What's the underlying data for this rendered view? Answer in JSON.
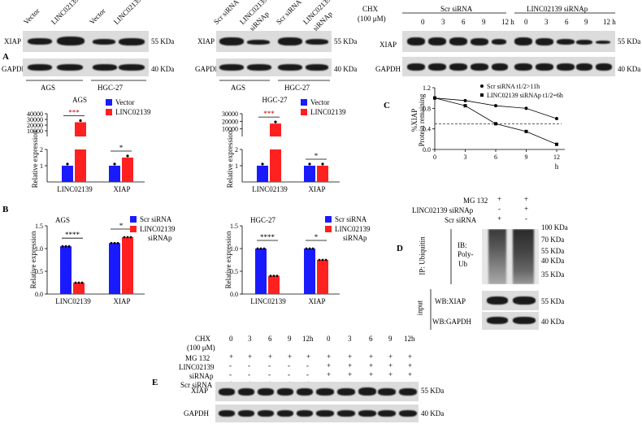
{
  "panel_letters": {
    "A": "A",
    "B": "B",
    "C": "C",
    "D": "D",
    "E": "E"
  },
  "units": {
    "kda55": "55 KDa",
    "kda40": "40 KDa",
    "kda100": "100 KDa",
    "kda70": "70 KDa",
    "kda35": "35 KDa"
  },
  "proteins": {
    "xiap": "XIAP",
    "gapdh": "GAPDH"
  },
  "cell_lines": {
    "ags": "AGS",
    "hgc": "HGC-27"
  },
  "blotA1": {
    "lanes": [
      "Vector",
      "LINC02139",
      "Vector",
      "LINC02139"
    ]
  },
  "blotA2": {
    "lanes": [
      "Scr siRNA",
      "LINC02139 siRNAp",
      "Scr siRNA",
      "LINC02139 siRNAp"
    ]
  },
  "blotC": {
    "cond_label": "CHX (100 μM)",
    "group1": "Scr siRNA",
    "group2": "LINC02139 siRNAp",
    "times": [
      "0",
      "3",
      "6",
      "9",
      "12 h",
      "0",
      "3",
      "6",
      "9",
      "12 h"
    ]
  },
  "plot_c": {
    "ylabel": "Protein remaining",
    "ylabel2": "%XIAP",
    "xlabel": "h",
    "legend": [
      "Scr siRNA t1/2>11h",
      "LINC02139 siRNAp t1/2=6h"
    ]
  },
  "blotD": {
    "rows": [
      "MG 132",
      "LINC02139 siRNAp",
      "Scr siRNA"
    ],
    "signs": [
      [
        "+",
        "+"
      ],
      [
        "-",
        "+"
      ],
      [
        "+",
        "-"
      ]
    ],
    "ip": "IP: Ubiquitin",
    "ib": "IB:",
    "ib2": "Poly-",
    "ib3": "Ub",
    "input": "input",
    "wb1": "WB:XIAP",
    "wb2": "WB:GAPDH"
  },
  "blotE": {
    "row_chx": "CHX",
    "row_chx2": "(100 μM)",
    "row_mg": "MG 132",
    "row_linc": "LINC02139",
    "row_linc2": "siRNAp",
    "row_scr": "Scr siRNA",
    "times": [
      "0",
      "3",
      "6",
      "9",
      "12h",
      "0",
      "3",
      "6",
      "9",
      "12h"
    ],
    "mg_signs": [
      "+",
      "+",
      "+",
      "+",
      "+",
      "+",
      "+",
      "+",
      "+",
      "+"
    ],
    "linc_signs": [
      "-",
      "-",
      "-",
      "-",
      "-",
      "+",
      "+",
      "+",
      "+",
      "+"
    ],
    "scr_signs": [
      "+",
      "+",
      "+",
      "+",
      "+",
      "-",
      "-",
      "-",
      "-",
      "-"
    ]
  },
  "chart_data": [
    {
      "type": "bar",
      "ylabel": "Relative expression",
      "title": "AGS",
      "categories": [
        "LINC02139",
        "XIAP"
      ],
      "series": [
        {
          "name": "Vector",
          "values": [
            1.0,
            1.0
          ]
        },
        {
          "name": "LINC02139",
          "values": [
            25000,
            1.5
          ]
        }
      ],
      "yticks": [
        "1",
        "2",
        "10000",
        "20000",
        "30000",
        "40000"
      ],
      "significance": [
        "***",
        "*"
      ],
      "colors": [
        "#1a1aff",
        "#ff2020"
      ]
    },
    {
      "type": "bar",
      "ylabel": "Relative expression",
      "title": "HGC-27",
      "categories": [
        "LINC02139",
        "XIAP"
      ],
      "series": [
        {
          "name": "Vector",
          "values": [
            1.0,
            1.0
          ]
        },
        {
          "name": "LINC02139",
          "values": [
            17000,
            1.0
          ]
        }
      ],
      "yticks": [
        "1",
        "2",
        "10000",
        "20000",
        "30000"
      ],
      "significance": [
        "***",
        "*"
      ],
      "colors": [
        "#1a1aff",
        "#ff2020"
      ]
    },
    {
      "type": "bar",
      "ylabel": "Relative expression",
      "title": "AGS",
      "categories": [
        "LINC02139",
        "XIAP"
      ],
      "series": [
        {
          "name": "Scr siRNA",
          "values": [
            1.05,
            1.12
          ]
        },
        {
          "name": "LINC02139 siRNAp",
          "values": [
            0.25,
            1.25
          ]
        }
      ],
      "yticks": [
        "0.0",
        "0.5",
        "1.0",
        "1.5"
      ],
      "ylim": [
        0,
        1.5
      ],
      "significance": [
        "****",
        "*"
      ],
      "colors": [
        "#1a1aff",
        "#ff2020"
      ]
    },
    {
      "type": "bar",
      "ylabel": "Relative expression",
      "title": "HGC-27",
      "categories": [
        "LINC02139",
        "XIAP"
      ],
      "series": [
        {
          "name": "Scr siRNA",
          "values": [
            1.0,
            1.0
          ]
        },
        {
          "name": "LINC02139 siRNAp",
          "values": [
            0.4,
            0.75
          ]
        }
      ],
      "yticks": [
        "0.0",
        "0.5",
        "1.0",
        "1.5"
      ],
      "ylim": [
        0,
        1.5
      ],
      "significance": [
        "****",
        "*"
      ],
      "colors": [
        "#1a1aff",
        "#ff2020"
      ]
    },
    {
      "type": "line",
      "ylabel": "Protein remaining",
      "xlabel": "h",
      "x": [
        0,
        3,
        6,
        9,
        12
      ],
      "xticks": [
        "0",
        "3",
        "6",
        "9",
        "12"
      ],
      "yticks": [
        "0.0",
        "0.4",
        "0.8",
        "1.2"
      ],
      "ylim": [
        0,
        1.2
      ],
      "series": [
        {
          "name": "Scr siRNA t1/2>11h",
          "values": [
            1.0,
            0.95,
            0.85,
            0.8,
            0.6
          ]
        },
        {
          "name": "LINC02139 siRNAp t1/2=6h",
          "values": [
            1.0,
            0.85,
            0.5,
            0.35,
            0.1
          ]
        }
      ],
      "reference_line": 0.5
    }
  ]
}
